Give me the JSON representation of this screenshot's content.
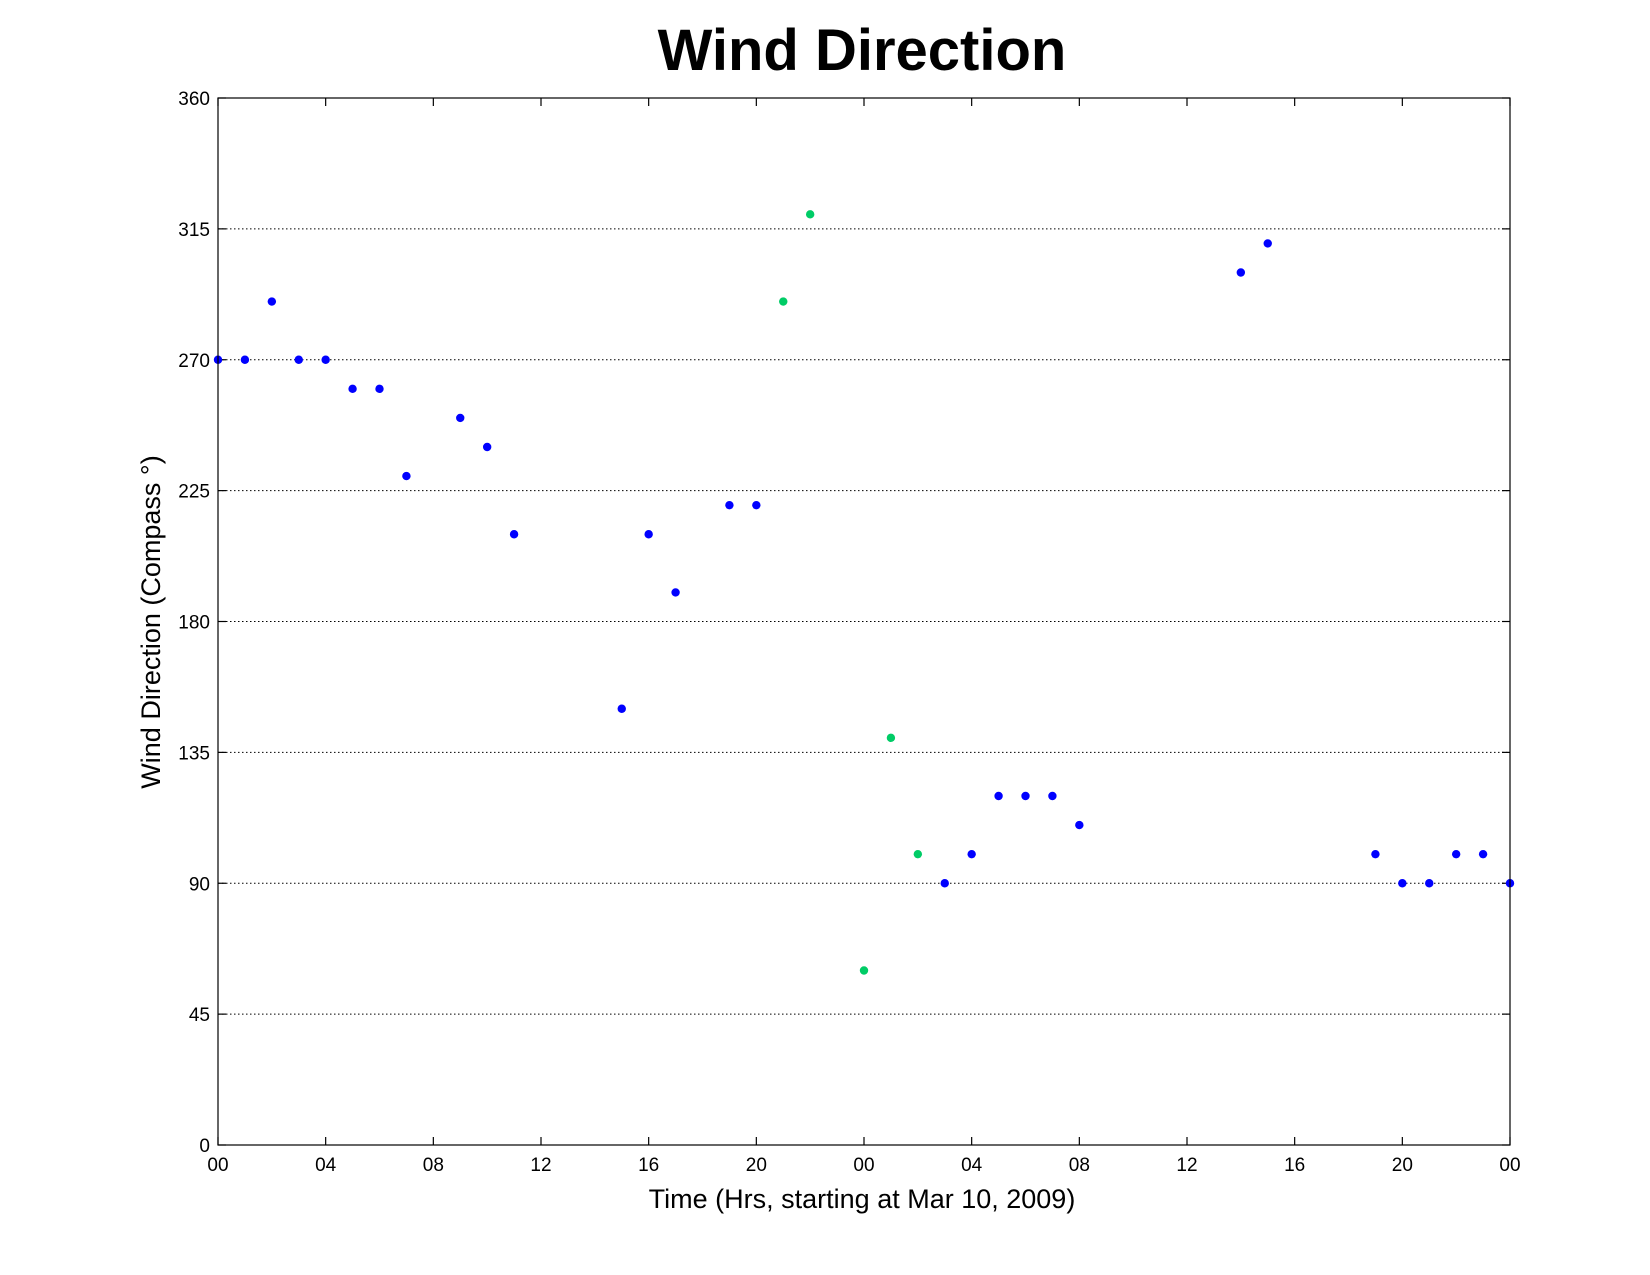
{
  "chart_data": {
    "type": "scatter",
    "title": "Wind Direction",
    "xlabel": "Time (Hrs, starting at Mar 10, 2009)",
    "ylabel": "Wind Direction (Compass  °)",
    "xlim": [
      "Mar 10, 2009 00:00",
      "Mar 12, 2009 00:00"
    ],
    "ylim": [
      0,
      360
    ],
    "x_tick_labels": [
      "00",
      "04",
      "08",
      "12",
      "16",
      "20",
      "00",
      "04",
      "08",
      "12",
      "16",
      "20",
      "00"
    ],
    "y_tick_labels": [
      "0",
      "45",
      "90",
      "135",
      "180",
      "225",
      "270",
      "315",
      "360"
    ],
    "grid": "y-dotted",
    "colors": {
      "blue": "#0000ff",
      "green": "#00cc66"
    },
    "series": [
      {
        "color": "#0000ff",
        "points": [
          {
            "t": "Mar 10, 2009 00:00",
            "v": 270
          },
          {
            "t": "Mar 10, 2009 01:00",
            "v": 270
          },
          {
            "t": "Mar 10, 2009 02:00",
            "v": 290
          },
          {
            "t": "Mar 10, 2009 03:00",
            "v": 270
          },
          {
            "t": "Mar 10, 2009 04:00",
            "v": 270
          },
          {
            "t": "Mar 10, 2009 05:00",
            "v": 260
          },
          {
            "t": "Mar 10, 2009 06:00",
            "v": 260
          },
          {
            "t": "Mar 10, 2009 07:00",
            "v": 230
          },
          {
            "t": "Mar 10, 2009 09:00",
            "v": 250
          },
          {
            "t": "Mar 10, 2009 10:00",
            "v": 240
          },
          {
            "t": "Mar 10, 2009 11:00",
            "v": 210
          },
          {
            "t": "Mar 10, 2009 15:00",
            "v": 150
          },
          {
            "t": "Mar 10, 2009 16:00",
            "v": 210
          },
          {
            "t": "Mar 10, 2009 17:00",
            "v": 190
          },
          {
            "t": "Mar 10, 2009 19:00",
            "v": 220
          },
          {
            "t": "Mar 10, 2009 20:00",
            "v": 220
          },
          {
            "t": "Mar 11, 2009 03:00",
            "v": 90
          },
          {
            "t": "Mar 11, 2009 04:00",
            "v": 100
          },
          {
            "t": "Mar 11, 2009 05:00",
            "v": 120
          },
          {
            "t": "Mar 11, 2009 06:00",
            "v": 120
          },
          {
            "t": "Mar 11, 2009 07:00",
            "v": 120
          },
          {
            "t": "Mar 11, 2009 08:00",
            "v": 110
          },
          {
            "t": "Mar 11, 2009 14:00",
            "v": 300
          },
          {
            "t": "Mar 11, 2009 15:00",
            "v": 310
          },
          {
            "t": "Mar 11, 2009 19:00",
            "v": 100
          },
          {
            "t": "Mar 11, 2009 20:00",
            "v": 90
          },
          {
            "t": "Mar 11, 2009 21:00",
            "v": 90
          },
          {
            "t": "Mar 11, 2009 22:00",
            "v": 100
          },
          {
            "t": "Mar 11, 2009 23:00",
            "v": 100
          },
          {
            "t": "Mar 12, 2009 00:00",
            "v": 90
          }
        ]
      },
      {
        "color": "#00cc66",
        "points": [
          {
            "t": "Mar 10, 2009 21:00",
            "v": 290
          },
          {
            "t": "Mar 10, 2009 22:00",
            "v": 320
          },
          {
            "t": "Mar 11, 2009 00:00",
            "v": 60
          },
          {
            "t": "Mar 11, 2009 01:00",
            "v": 140
          },
          {
            "t": "Mar 11, 2009 02:00",
            "v": 100
          }
        ]
      }
    ]
  }
}
